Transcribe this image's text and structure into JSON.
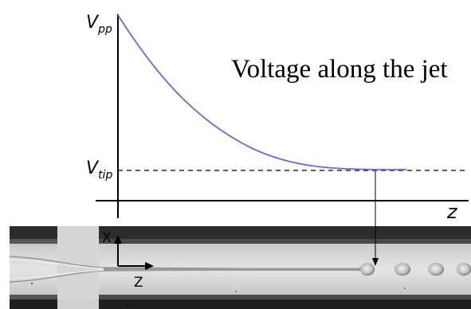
{
  "diagram": {
    "title": "Voltage along the jet",
    "y_top_label": {
      "main": "V",
      "sub": "pp"
    },
    "y_mid_label": {
      "main": "V",
      "sub": "tip"
    },
    "x_axis_label": "z"
  },
  "image": {
    "axis_x_label": "X",
    "axis_z_label": "Z"
  },
  "colors": {
    "curve": "#6a6ad8",
    "axis": "#000000",
    "channel_wall": "#3a3a3a",
    "channel_fluid": "#dcdcdc"
  }
}
